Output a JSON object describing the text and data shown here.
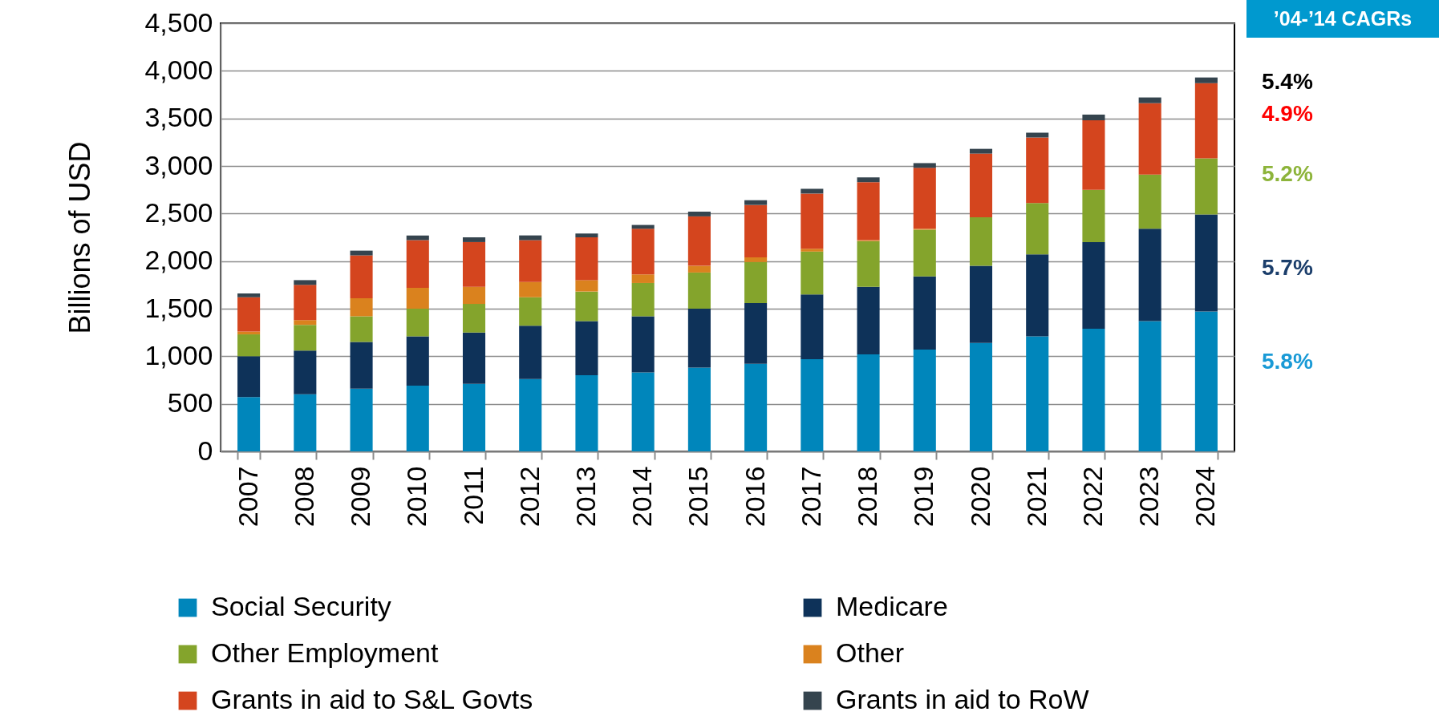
{
  "chart_data": {
    "type": "bar",
    "stacked": true,
    "ylabel": "Billions of USD",
    "categories": [
      "2007",
      "2008",
      "2009",
      "2010",
      "2011",
      "2012",
      "2013",
      "2014",
      "2015",
      "2016",
      "2017",
      "2018",
      "2019",
      "2020",
      "2021",
      "2022",
      "2023",
      "2024"
    ],
    "series": [
      {
        "name": "Social Security",
        "color": "#0086bb",
        "values": [
          570,
          600,
          660,
          690,
          710,
          760,
          800,
          830,
          880,
          920,
          970,
          1020,
          1070,
          1140,
          1210,
          1290,
          1370,
          1470
        ]
      },
      {
        "name": "Medicare",
        "color": "#0e3259",
        "values": [
          430,
          460,
          490,
          520,
          540,
          560,
          570,
          590,
          620,
          640,
          680,
          710,
          770,
          810,
          860,
          910,
          970,
          1020
        ]
      },
      {
        "name": "Other Employment",
        "color": "#84a42c",
        "values": [
          230,
          270,
          270,
          290,
          300,
          300,
          310,
          350,
          380,
          430,
          450,
          480,
          490,
          510,
          540,
          550,
          570,
          590
        ]
      },
      {
        "name": "Other",
        "color": "#da821e",
        "values": [
          30,
          50,
          190,
          220,
          180,
          160,
          120,
          90,
          70,
          50,
          30,
          10,
          10,
          0,
          0,
          0,
          0,
          0
        ]
      },
      {
        "name": "Grants in aid to S&L Govts",
        "color": "#d4451e",
        "values": [
          360,
          370,
          450,
          500,
          470,
          440,
          450,
          480,
          520,
          550,
          580,
          610,
          640,
          670,
          690,
          730,
          750,
          790
        ]
      },
      {
        "name": "Grants in aid to RoW",
        "color": "#35444e",
        "values": [
          40,
          50,
          50,
          50,
          50,
          50,
          40,
          40,
          50,
          50,
          50,
          50,
          50,
          50,
          50,
          60,
          60,
          60
        ]
      }
    ],
    "ylim": [
      0,
      4500
    ],
    "yticks": [
      0,
      500,
      {
        "value": 1000,
        "label": "1,000"
      },
      {
        "value": 1500,
        "label": "1,500"
      },
      {
        "value": 2000,
        "label": "2,000"
      },
      {
        "value": 2500,
        "label": "2,500"
      },
      {
        "value": 3000,
        "label": "3,000"
      },
      {
        "value": 3500,
        "label": "3,500"
      },
      {
        "value": 4000,
        "label": "4,000"
      },
      {
        "value": 4500,
        "label": "4,500"
      }
    ],
    "grid": "y",
    "legend": "bottom",
    "annotations": [
      "’04-’14 CAGRs",
      "5.4%",
      "4.9%",
      "5.2%",
      "5.7%",
      "5.8%"
    ]
  }
}
